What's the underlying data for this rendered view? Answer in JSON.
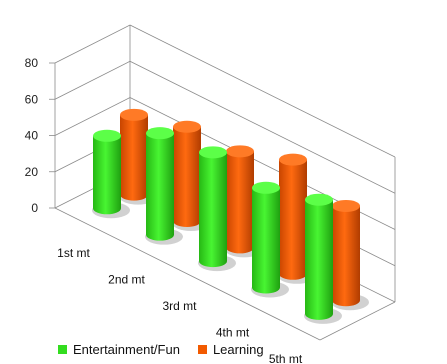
{
  "chart_data": {
    "type": "bar",
    "categories": [
      "1st mt",
      "2nd mt",
      "3rd mt",
      "4th mt",
      "5th mt"
    ],
    "series": [
      {
        "name": "Entertainment/Fun",
        "values": [
          40,
          56,
          60,
          55,
          63
        ],
        "color": "#33dd1f"
      },
      {
        "name": "Learning",
        "values": [
          44,
          52,
          53,
          63,
          52
        ],
        "color": "#f25a00"
      }
    ],
    "yticks": [
      0,
      20,
      40,
      60,
      80
    ],
    "ylim": [
      0,
      80
    ],
    "grid": true,
    "legend_position": "bottom"
  }
}
